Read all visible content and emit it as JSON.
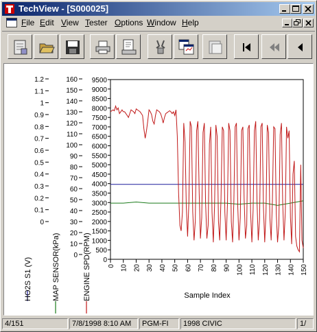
{
  "window": {
    "title": "TechView - [S000025]",
    "buttons": [
      "minimize",
      "maximize",
      "close"
    ]
  },
  "menu": {
    "items": [
      {
        "label": "File",
        "accel": "F"
      },
      {
        "label": "Edit",
        "accel": "E"
      },
      {
        "label": "View",
        "accel": "V"
      },
      {
        "label": "Tester",
        "accel": "T"
      },
      {
        "label": "Options",
        "accel": "O"
      },
      {
        "label": "Window",
        "accel": "W"
      },
      {
        "label": "Help",
        "accel": "H"
      }
    ]
  },
  "toolbar": {
    "icons": [
      "report-icon",
      "open-folder-icon",
      "save-icon",
      "print-icon",
      "print-preview-icon",
      "tester-connect-icon",
      "copy-window-icon",
      "paste-window-icon",
      "first-frame-icon",
      "previous-frame-icon",
      "step-back-icon"
    ]
  },
  "status": {
    "frame": "4/151",
    "datetime": "7/8/1998 8:10 AM",
    "system": "PGM-FI",
    "vehicle": "1998 CIVIC",
    "page": "1/"
  },
  "chart_data": {
    "type": "line",
    "xlabel": "Sample Index",
    "xlim": [
      0,
      150
    ],
    "x_ticks": [
      "0",
      "10",
      "20",
      "30",
      "40",
      "50",
      "60",
      "70",
      "80",
      "90",
      "100",
      "110",
      "120",
      "130",
      "140",
      "150"
    ],
    "series": [
      {
        "name": "HO2S S1 (V)",
        "color": "#1c1c9a",
        "ylim": [
          0,
          1.2
        ],
        "ticks": [
          "1.2",
          "1.1",
          "1",
          "0.9",
          "0.8",
          "0.7",
          "0.6",
          "0.5",
          "0.4",
          "0.3",
          "0.2",
          "0.1",
          "0"
        ],
        "values": [
          0.5,
          0.5,
          0.5,
          0.5,
          0.5,
          0.5,
          0.5,
          0.5,
          0.5,
          0.5
        ]
      },
      {
        "name": "MAP SENSOR(kPa)",
        "color": "#1a7a1a",
        "ylim": [
          0,
          160
        ],
        "ticks": [
          "160",
          "150",
          "140",
          "130",
          "120",
          "110",
          "100",
          "90",
          "80",
          "70",
          "60",
          "50",
          "40",
          "30",
          "20",
          "10",
          "0"
        ],
        "values": [
          50,
          50,
          51,
          50,
          50,
          50,
          50,
          50,
          50,
          50,
          49,
          50,
          50,
          48,
          50,
          52
        ]
      },
      {
        "name": "ENGINE SPD(RPM)",
        "color": "#c01818",
        "ylim": [
          0,
          9500
        ],
        "ticks": [
          "9500",
          "9000",
          "8500",
          "8000",
          "7500",
          "7000",
          "6500",
          "6000",
          "5500",
          "5000",
          "4500",
          "4000",
          "3500",
          "3000",
          "2500",
          "2000",
          "1500",
          "1000",
          "500",
          "0"
        ],
        "values": [
          7800,
          7850,
          7900,
          7850,
          8100,
          7900,
          8000,
          7700,
          7800,
          7900,
          7800,
          7800,
          7700,
          7600,
          7500,
          7700,
          7900,
          7850,
          7800,
          7700,
          7950,
          7900,
          7850,
          7800,
          7700,
          7600,
          6900,
          6400,
          6800,
          7300,
          7900,
          7800,
          7650,
          7300,
          7150,
          7600,
          7900,
          7850,
          7800,
          7700,
          7500,
          7200,
          7500,
          7700,
          7750,
          7800,
          7850,
          7800,
          7700,
          7800,
          7600,
          7900,
          6500,
          3500,
          1800,
          1500,
          2500,
          7200,
          6200,
          2800,
          1200,
          3000,
          7300,
          7000,
          2500,
          1000,
          2000,
          6800,
          7300,
          3500,
          1100,
          2200,
          6700,
          7200,
          3000,
          1100,
          1800,
          6100,
          7000,
          2500,
          900,
          2800,
          7100,
          6500,
          2000,
          1000,
          3200,
          7000,
          6800,
          2500,
          1000,
          2900,
          7200,
          6800,
          2000,
          900,
          3000,
          7000,
          7200,
          2800,
          1000,
          2200,
          6800,
          7000,
          3200,
          1100,
          1800,
          6900,
          7100,
          2500,
          900,
          2600,
          6800,
          7300,
          3000,
          1000,
          2100,
          7000,
          7200,
          2800,
          900,
          2500,
          7100,
          6700,
          2200,
          1000,
          3100,
          7000,
          6900,
          2400,
          900,
          1800,
          6600,
          7200,
          3000,
          1000,
          2500,
          7000,
          6400,
          6800,
          2200,
          800,
          4500,
          5200,
          1200,
          700,
          500,
          400,
          5000,
          1000,
          600
        ]
      }
    ]
  }
}
